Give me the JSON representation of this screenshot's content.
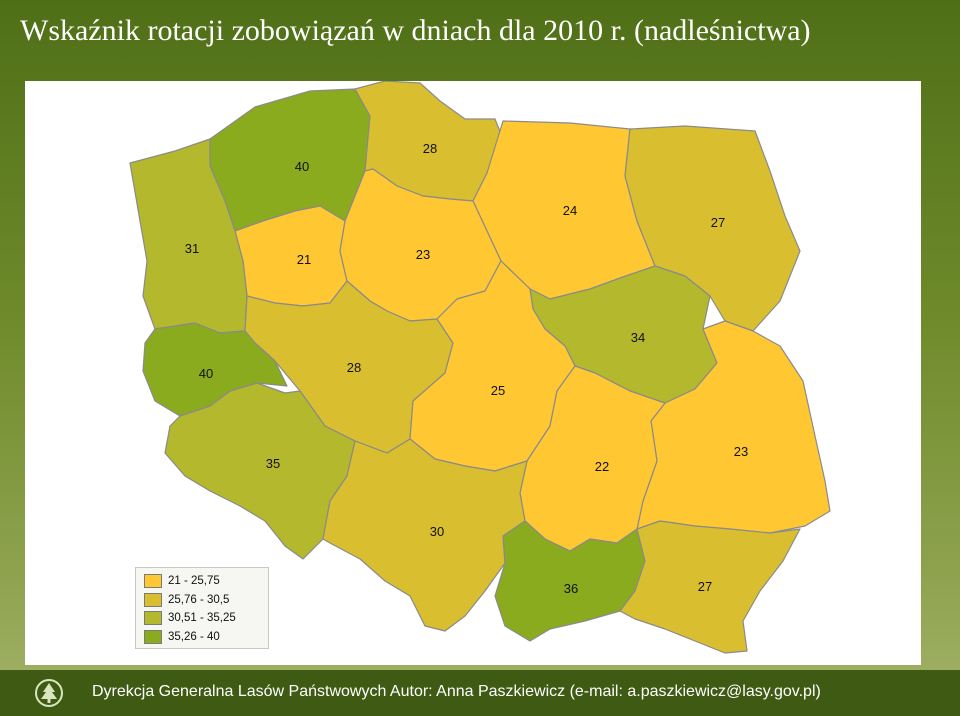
{
  "title": "Wskaźnik rotacji zobowiązań w dniach dla 2010 r. (nadleśnictwa)",
  "colors": {
    "class1": "#ffc833",
    "class2": "#d9bf2f",
    "class3": "#b4b82c",
    "class4": "#8aab1d"
  },
  "legend": [
    {
      "label": "21 - 25,75",
      "class": "class1"
    },
    {
      "label": "25,76 - 30,5",
      "class": "class2"
    },
    {
      "label": "30,51 - 35,25",
      "class": "class3"
    },
    {
      "label": "35,26 - 40",
      "class": "class4"
    }
  ],
  "regions": [
    {
      "id": "szczecin",
      "value": "40",
      "class": "class4"
    },
    {
      "id": "gdansk",
      "value": "28",
      "class": "class2"
    },
    {
      "id": "olsztyn",
      "value": "24",
      "class": "class1"
    },
    {
      "id": "bialystok",
      "value": "27",
      "class": "class2"
    },
    {
      "id": "pila",
      "value": "21",
      "class": "class1"
    },
    {
      "id": "torun",
      "value": "23",
      "class": "class1"
    },
    {
      "id": "zielona-gora",
      "value": "31",
      "class": "class3"
    },
    {
      "id": "poznan",
      "value": "28",
      "class": "class2"
    },
    {
      "id": "warszawa",
      "value": "34",
      "class": "class3"
    },
    {
      "id": "lodz",
      "value": "25",
      "class": "class1"
    },
    {
      "id": "lublin",
      "value": "23",
      "class": "class1"
    },
    {
      "id": "radom",
      "value": "22",
      "class": "class1"
    },
    {
      "id": "wroclaw",
      "value": "35",
      "class": "class3"
    },
    {
      "id": "katowice",
      "value": "30",
      "class": "class2"
    },
    {
      "id": "krakow",
      "value": "36",
      "class": "class4"
    },
    {
      "id": "krosno",
      "value": "27",
      "class": "class2"
    },
    {
      "id": "west-small",
      "value": "40",
      "class": "class4"
    }
  ],
  "footer": {
    "text": "Dyrekcja Generalna Lasów Państwowych Autor: Anna Paszkiewicz (e-mail: a.paszkiewicz@lasy.gov.pl)"
  }
}
